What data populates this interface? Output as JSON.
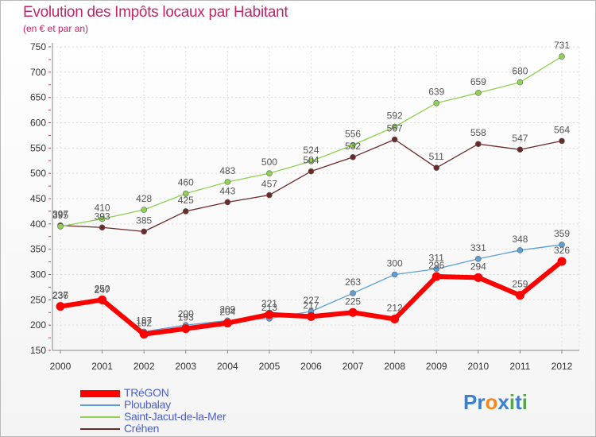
{
  "chart_data": {
    "type": "line",
    "title": "Evolution des Impôts locaux par Habitant",
    "subtitle": "(en € et par an)",
    "x": [
      "2000",
      "2001",
      "2002",
      "2003",
      "2004",
      "2005",
      "2006",
      "2007",
      "2008",
      "2009",
      "2010",
      "2011",
      "2012"
    ],
    "ylim": [
      150,
      750
    ],
    "yticks": [
      "150",
      "200",
      "250",
      "300",
      "350",
      "400",
      "450",
      "500",
      "550",
      "600",
      "650",
      "700",
      "750"
    ],
    "grid": true,
    "series": [
      {
        "name": "TRéGON",
        "color": "#ff0000",
        "values": [
          237,
          250,
          182,
          193,
          204,
          221,
          217,
          225,
          212,
          296,
          294,
          259,
          326
        ],
        "labels": [
          "237",
          "250",
          "182",
          "193",
          "204",
          "221",
          "217",
          "225",
          "212",
          "296",
          "294",
          "259",
          "326"
        ]
      },
      {
        "name": "Ploubalay",
        "color": "#5c9fd4",
        "values": [
          236,
          247,
          187,
          200,
          209,
          213,
          227,
          263,
          300,
          311,
          331,
          348,
          359
        ],
        "labels": [
          "236",
          "247",
          "187",
          "200",
          "209",
          "213",
          "227",
          "263",
          "300",
          "311",
          "331",
          "348",
          "359"
        ]
      },
      {
        "name": "Saint-Jacut-de-la-Mer",
        "color": "#8fd152",
        "values": [
          395,
          410,
          428,
          460,
          483,
          500,
          524,
          556,
          592,
          639,
          659,
          680,
          731
        ],
        "labels": [
          "395",
          "410",
          "428",
          "460",
          "483",
          "500",
          "524",
          "556",
          "592",
          "639",
          "659",
          "680",
          "731"
        ]
      },
      {
        "name": "Créhen",
        "color": "#6b2a2a",
        "values": [
          397,
          393,
          385,
          425,
          443,
          457,
          504,
          532,
          567,
          511,
          558,
          547,
          564
        ],
        "labels": [
          "397",
          "393",
          "385",
          "425",
          "443",
          "457",
          "504",
          "532",
          "567",
          "511",
          "558",
          "547",
          "564"
        ]
      }
    ]
  },
  "logo": {
    "letters": [
      "P",
      "r",
      "o",
      "x",
      "i",
      "t",
      "i"
    ],
    "colors": [
      "#3a7fd0",
      "#3a7fd0",
      "#f08a1c",
      "#3a7fd0",
      "#4cae3a",
      "#3a7fd0",
      "#4cae3a"
    ]
  }
}
